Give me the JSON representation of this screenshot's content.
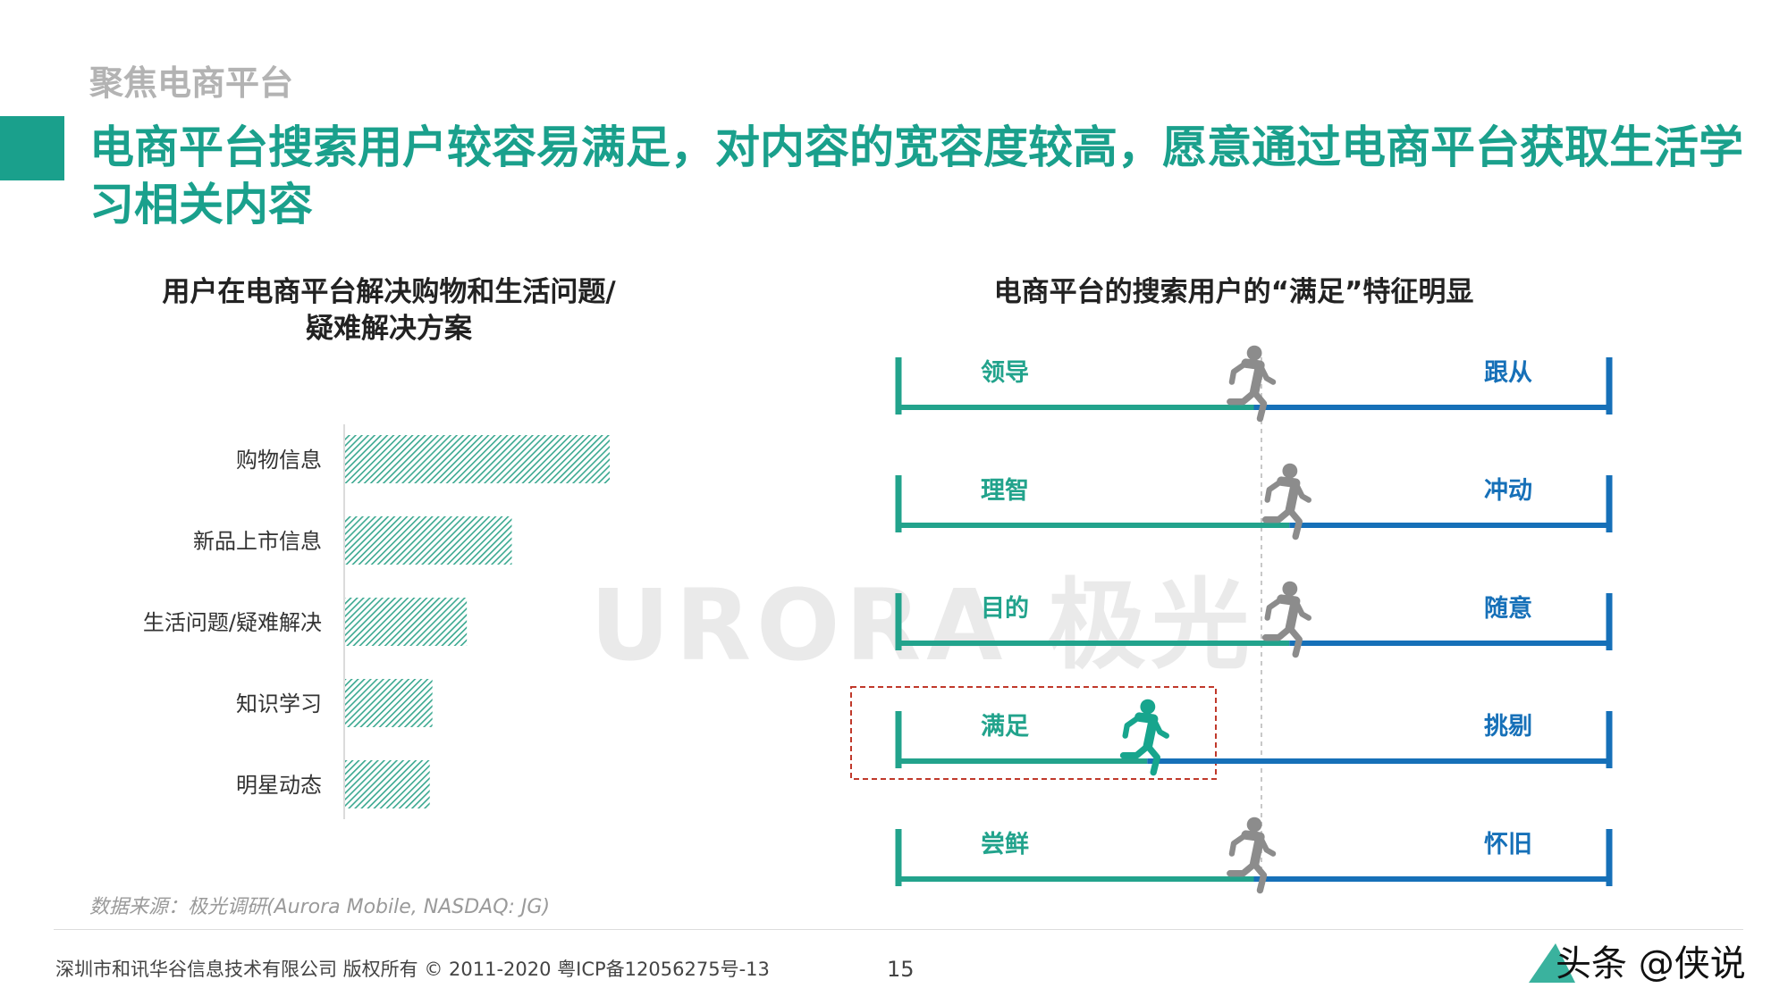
{
  "header": {
    "section_label": "聚焦电商平台",
    "headline": "电商平台搜索用户较容易满足，对内容的宽容度较高，愿意通过电商平台获取生活学习相关内容",
    "accent_color": "#1aa08c"
  },
  "left_panel": {
    "title_line1": "用户在电商平台解决购物和生活问题/",
    "title_line2": "疑难解决方案"
  },
  "right_panel": {
    "title": "电商平台的搜索用户的“满足”特征明显"
  },
  "chart_data": [
    {
      "type": "bar",
      "orientation": "horizontal",
      "categories": [
        "购物信息",
        "新品上市信息",
        "生活问题/疑难解决",
        "知识学习",
        "明星动态"
      ],
      "values": [
        100,
        63,
        46,
        33,
        32
      ],
      "value_note": "relative bar length (no numeric labels shown)",
      "bar_color": "#3aa890",
      "bar_pattern": "diagonal-hatch"
    },
    {
      "type": "bipolar-scale",
      "rows": [
        {
          "left": "领导",
          "right": "跟从",
          "position": 0.5,
          "highlight": false
        },
        {
          "left": "理智",
          "right": "冲动",
          "position": 0.55,
          "highlight": false
        },
        {
          "left": "目的",
          "right": "随意",
          "position": 0.55,
          "highlight": false
        },
        {
          "left": "满足",
          "right": "挑剔",
          "position": 0.35,
          "highlight": true
        },
        {
          "left": "尝鲜",
          "right": "怀旧",
          "position": 0.5,
          "highlight": false
        }
      ],
      "left_color": "#22a38c",
      "right_color": "#1670b8",
      "marker_color": "#8c8c8c",
      "highlight_marker_color": "#17a58d",
      "highlight_box_color": "#c0392b"
    }
  ],
  "watermark": {
    "text": "URORA 极光"
  },
  "source_note": "数据来源：极光调研(Aurora Mobile, NASDAQ: JG)",
  "footer": {
    "copyright": "深圳市和讯华谷信息技术有限公司 版权所有 © 2011-2020 粤ICP备12056275号-13",
    "page_number": "15",
    "brand_overlay": "头条 @侠说"
  }
}
